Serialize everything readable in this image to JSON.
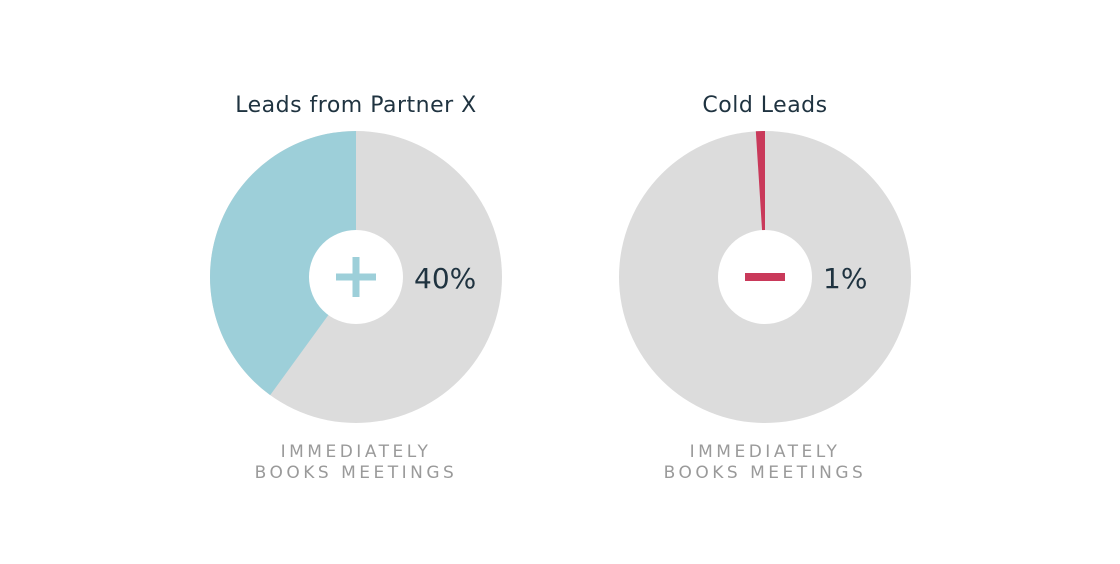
{
  "chart_data": [
    {
      "type": "pie",
      "title": "Leads from Partner X",
      "values": [
        40
      ],
      "value_labels": [
        "40%"
      ],
      "color": "#9dcfd9",
      "track_color": "#dcdcdc",
      "range": [
        0,
        100
      ],
      "direction": "counterclockwise",
      "caption": [
        "IMMEDIATELY",
        "BOOKS MEETINGS"
      ]
    },
    {
      "type": "pie",
      "title": "Cold Leads",
      "values": [
        1
      ],
      "value_labels": [
        "1%"
      ],
      "color": "#c9395a",
      "track_color": "#dcdcdc",
      "range": [
        0,
        100
      ],
      "direction": "counterclockwise",
      "caption": [
        "IMMEDIATELY",
        "BOOKS MEETINGS"
      ]
    }
  ]
}
